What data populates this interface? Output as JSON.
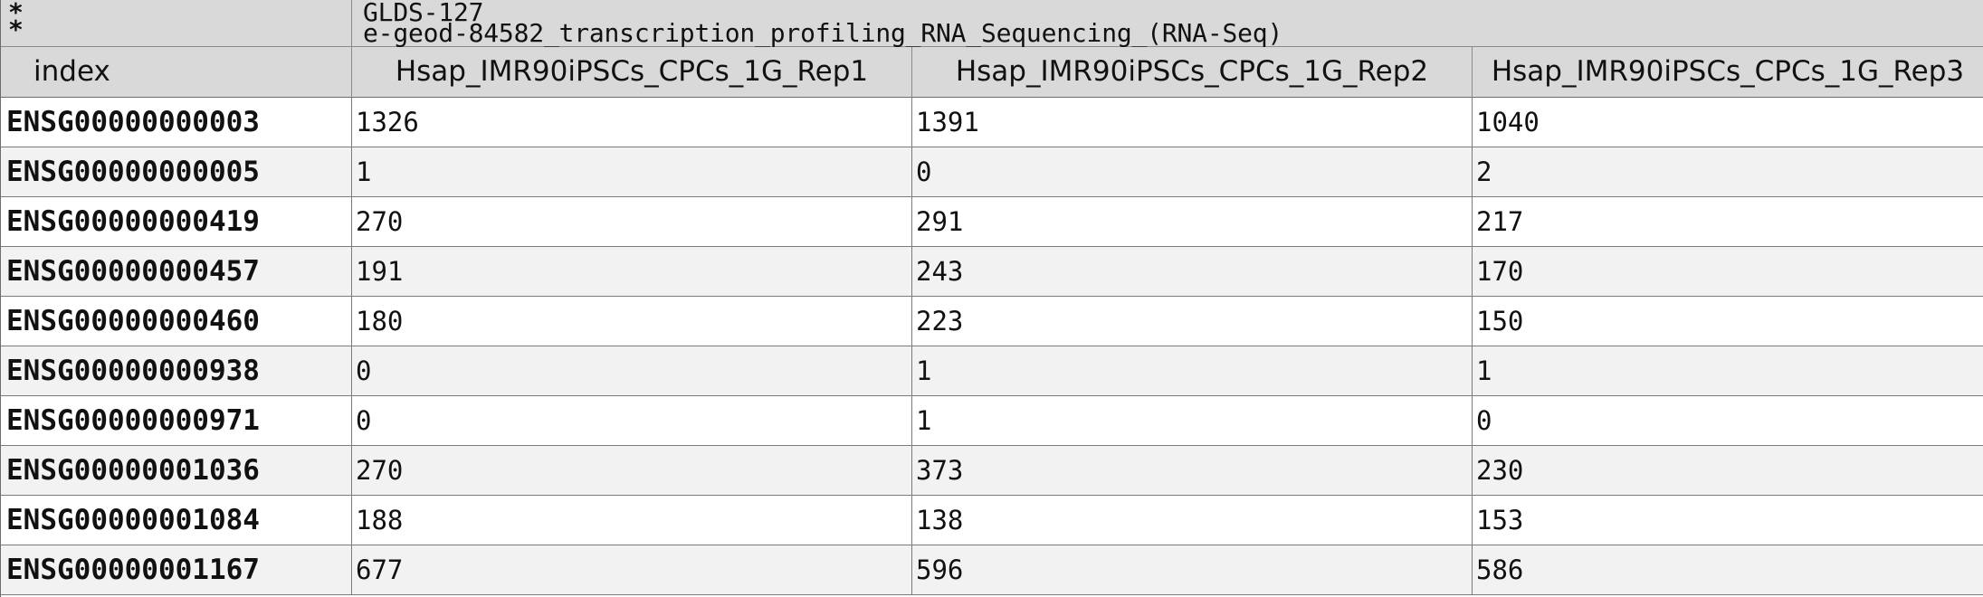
{
  "meta": {
    "marks": [
      "*",
      "*"
    ],
    "dataset_id": "GLDS-127",
    "assay_name": "e-geod-84582_transcription_profiling_RNA_Sequencing_(RNA-Seq)"
  },
  "table": {
    "columns": [
      "index",
      "Hsap_IMR90iPSCs_CPCs_1G_Rep1",
      "Hsap_IMR90iPSCs_CPCs_1G_Rep2",
      "Hsap_IMR90iPSCs_CPCs_1G_Rep3"
    ],
    "rows": [
      [
        "ENSG00000000003",
        "1326",
        "1391",
        "1040"
      ],
      [
        "ENSG00000000005",
        "1",
        "0",
        "2"
      ],
      [
        "ENSG00000000419",
        "270",
        "291",
        "217"
      ],
      [
        "ENSG00000000457",
        "191",
        "243",
        "170"
      ],
      [
        "ENSG00000000460",
        "180",
        "223",
        "150"
      ],
      [
        "ENSG00000000938",
        "0",
        "1",
        "1"
      ],
      [
        "ENSG00000000971",
        "0",
        "1",
        "0"
      ],
      [
        "ENSG00000001036",
        "270",
        "373",
        "230"
      ],
      [
        "ENSG00000001084",
        "188",
        "138",
        "153"
      ],
      [
        "ENSG00000001167",
        "677",
        "596",
        "586"
      ]
    ]
  },
  "colors": {
    "header_bg": "#d9d9d9",
    "alt_row_bg": "#f2f2f2",
    "grid_line": "#7b7b7b"
  }
}
